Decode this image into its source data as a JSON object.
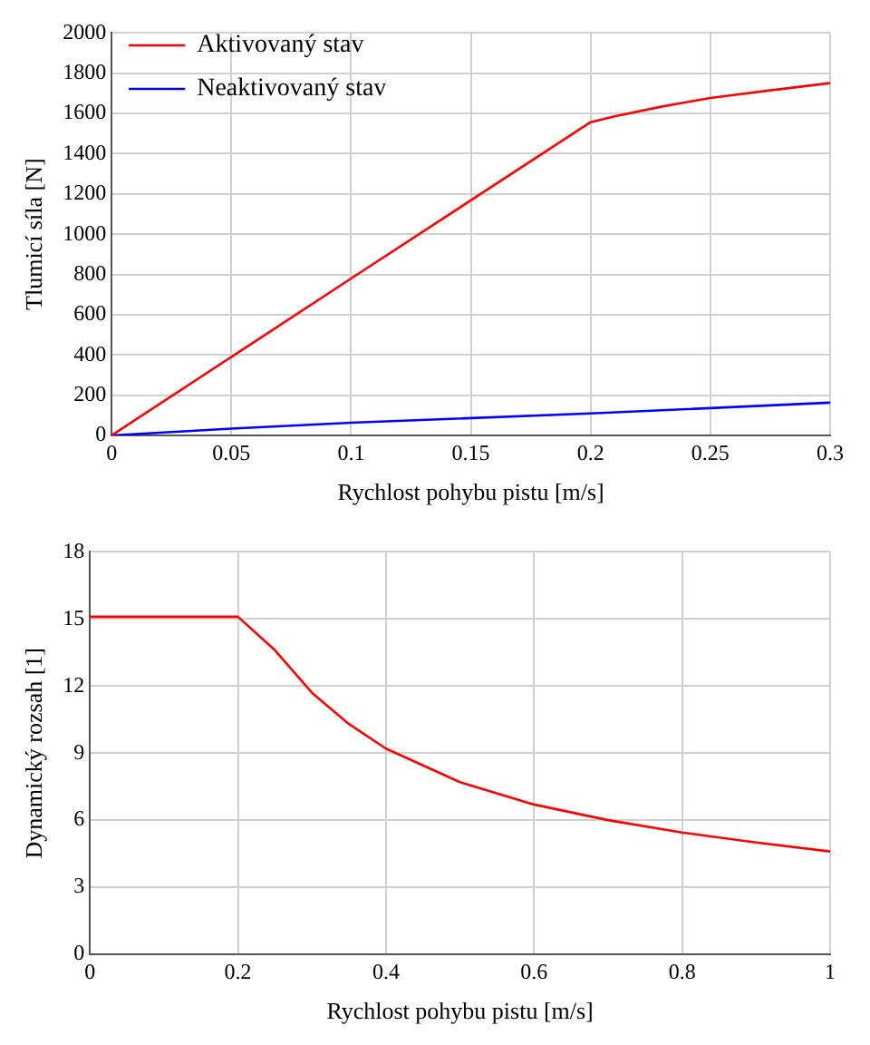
{
  "chart_data": [
    {
      "type": "line",
      "xlabel": "Rychlost pohybu pistu [m/s]",
      "ylabel": "Tlumicí síla [N]",
      "xlim": [
        0,
        0.3
      ],
      "xticks": [
        0,
        0.05,
        0.1,
        0.15,
        0.2,
        0.25,
        0.3
      ],
      "ylim": [
        0,
        2000
      ],
      "yticks": [
        0,
        200,
        400,
        600,
        800,
        1000,
        1200,
        1400,
        1600,
        1800,
        2000
      ],
      "grid": true,
      "legend": "top left",
      "series": [
        {
          "name": "Aktivovaný stav",
          "color": "#ff0000",
          "x": [
            0,
            0.1,
            0.2,
            0.21,
            0.23,
            0.25,
            0.275,
            0.3
          ],
          "values": [
            0,
            780,
            1557,
            1586,
            1635,
            1677,
            1715,
            1751
          ]
        },
        {
          "name": "Neaktivovaný stav",
          "color": "#0000ff",
          "x": [
            0,
            0.05,
            0.1,
            0.2,
            0.3
          ],
          "values": [
            0,
            34,
            63,
            109,
            163
          ]
        }
      ]
    },
    {
      "type": "line",
      "xlabel": "Rychlost pohybu pistu [m/s]",
      "ylabel": "Dynamický rozsah [1]",
      "xlim": [
        0,
        1
      ],
      "xticks": [
        0,
        0.2,
        0.4,
        0.6,
        0.8,
        1
      ],
      "ylim": [
        0,
        18
      ],
      "yticks": [
        0,
        3,
        6,
        9,
        12,
        15,
        18
      ],
      "grid": true,
      "legend": false,
      "series": [
        {
          "color": "#ff0000",
          "x": [
            0,
            0.2,
            0.25,
            0.3,
            0.35,
            0.4,
            0.5,
            0.6,
            0.7,
            0.8,
            0.9,
            1
          ],
          "values": [
            15.1,
            15.1,
            13.6,
            11.7,
            10.3,
            9.2,
            7.7,
            6.7,
            6.0,
            5.45,
            5.0,
            4.6
          ]
        }
      ]
    }
  ]
}
